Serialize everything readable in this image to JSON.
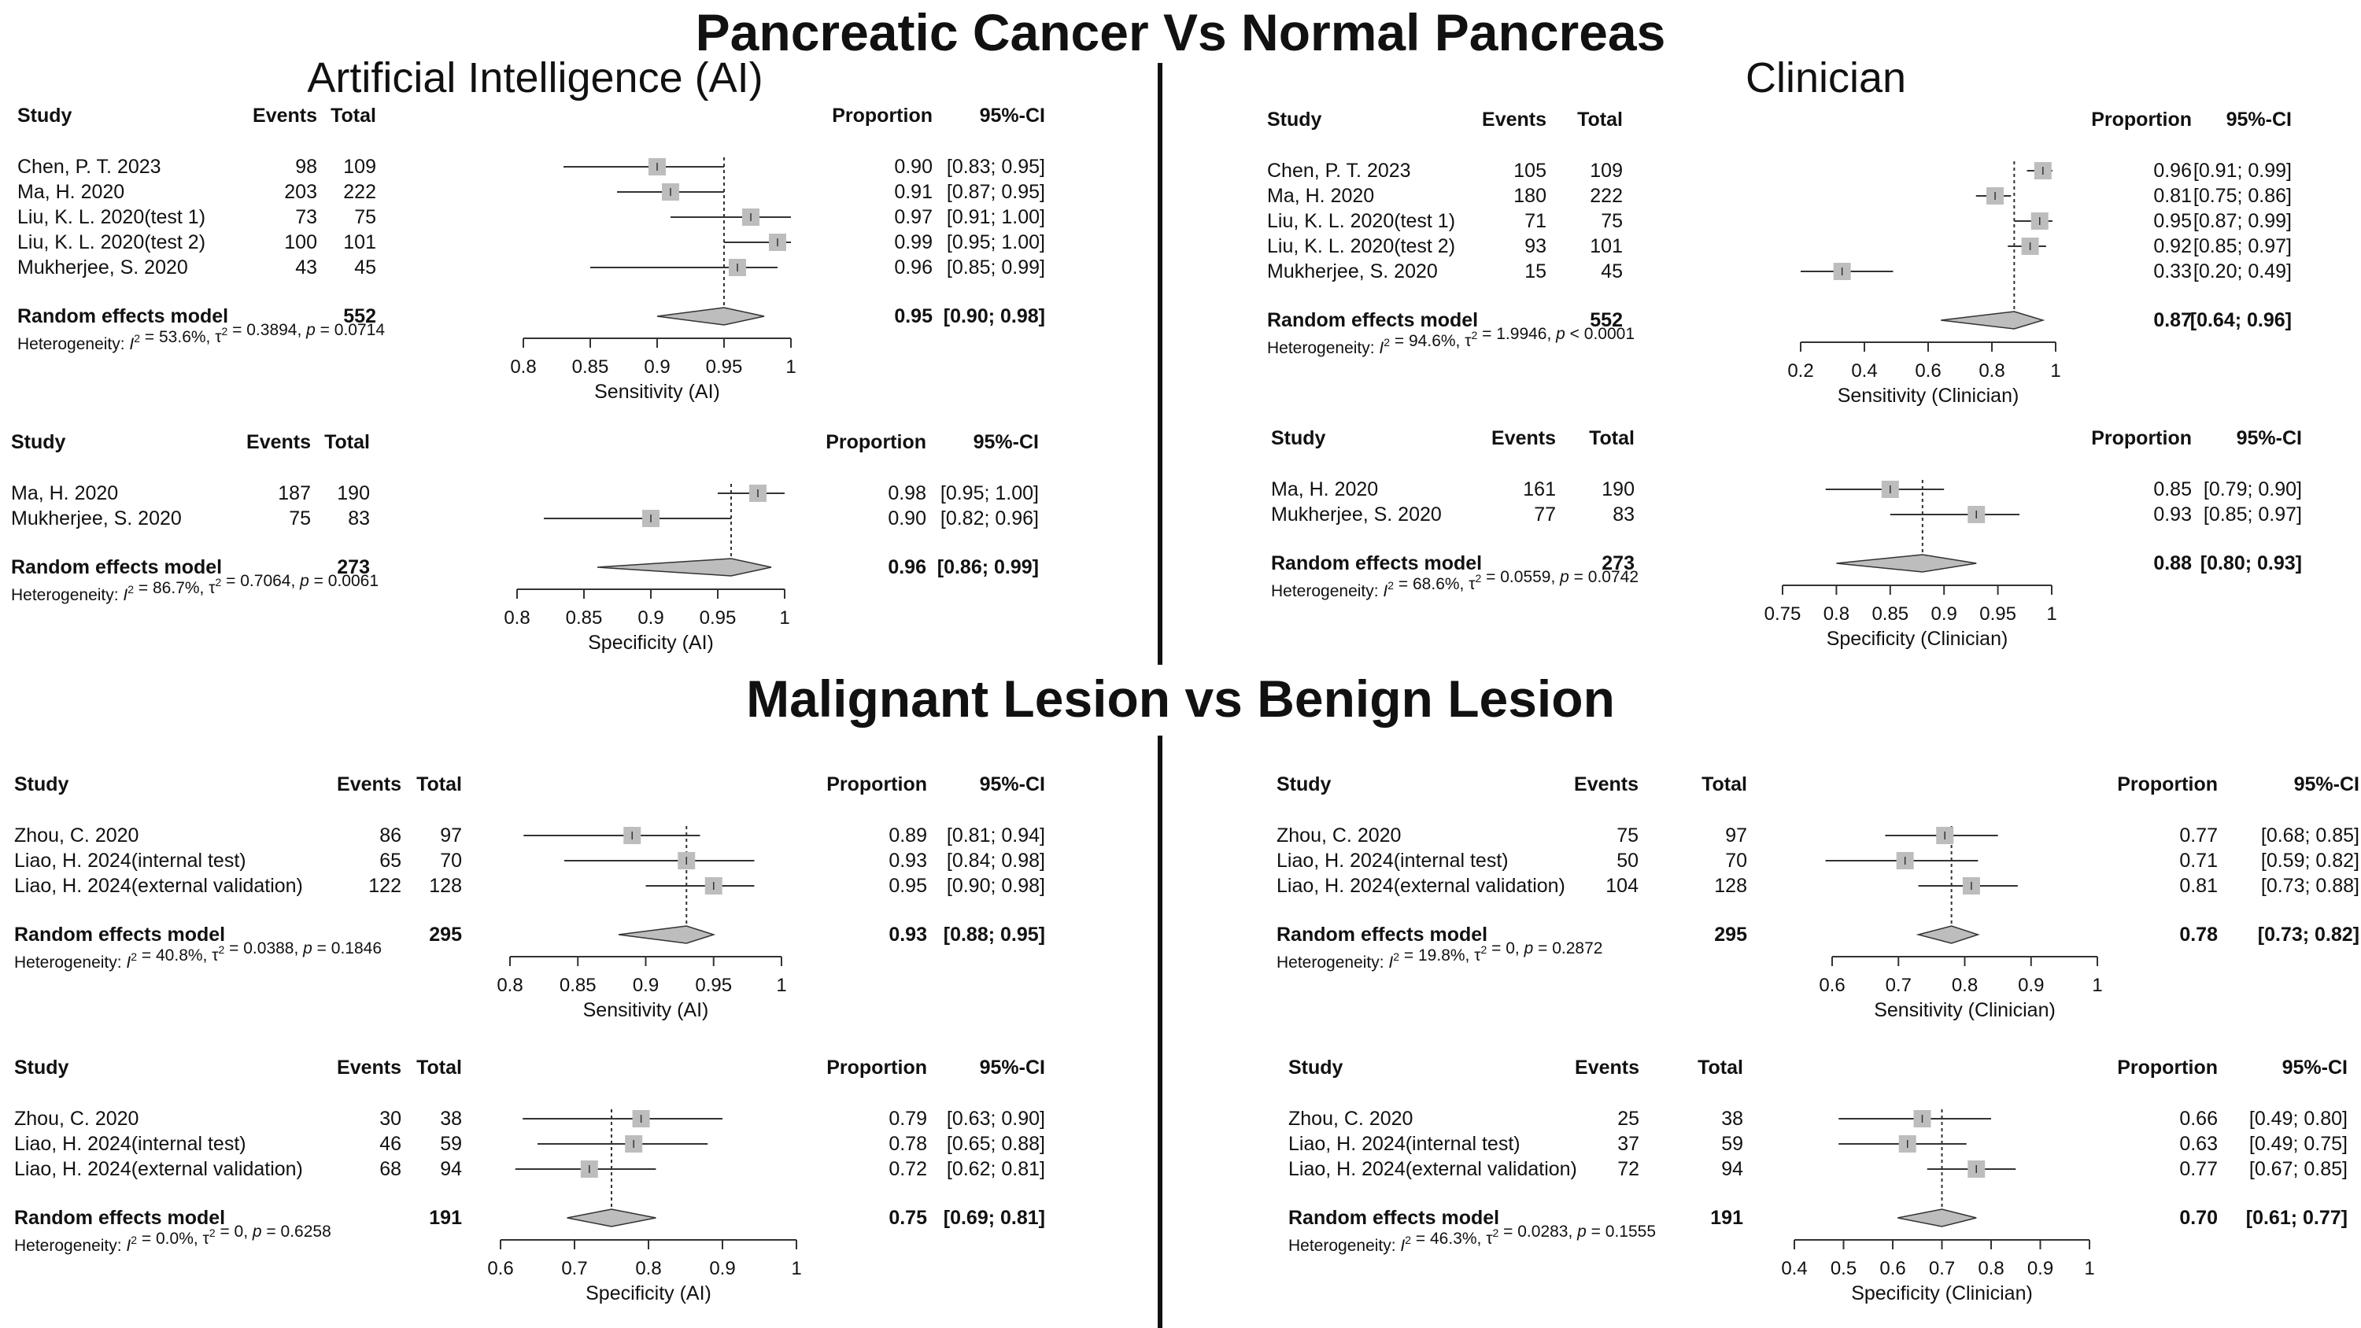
{
  "titles": {
    "top": "Pancreatic Cancer Vs Normal Pancreas",
    "bottom": "Malignant Lesion vs Benign Lesion",
    "ai": "Artificial Intelligence (AI)",
    "clinician": "Clinician"
  },
  "headers": {
    "study": "Study",
    "events": "Events",
    "total": "Total",
    "proportion": "Proportion",
    "ci": "95%-CI"
  },
  "colors": {
    "box": "#bdbdbd",
    "diamond": "#bdbdbd",
    "line": "#333333",
    "divider": "#111111"
  },
  "chart_data": [
    {
      "id": "pc-ai-sens",
      "type": "forest",
      "xlabel": "Sensitivity (AI)",
      "xlim": [
        0.8,
        1.0
      ],
      "xticks": [
        0.8,
        0.85,
        0.9,
        0.95,
        1
      ],
      "tick_labels": [
        "0.8",
        "0.85",
        "0.9",
        "0.95",
        "1"
      ],
      "studies": [
        {
          "label": "Chen, P. T. 2023",
          "events": "98",
          "total": "109",
          "est": 0.9,
          "lo": 0.83,
          "hi": 0.95,
          "prop_text": "0.90",
          "ci_text": "[0.83; 0.95]"
        },
        {
          "label": "Ma, H. 2020",
          "events": "203",
          "total": "222",
          "est": 0.91,
          "lo": 0.87,
          "hi": 0.95,
          "prop_text": "0.91",
          "ci_text": "[0.87; 0.95]"
        },
        {
          "label": "Liu, K. L. 2020(test 1)",
          "events": "73",
          "total": "75",
          "est": 0.97,
          "lo": 0.91,
          "hi": 1.0,
          "prop_text": "0.97",
          "ci_text": "[0.91; 1.00]"
        },
        {
          "label": "Liu, K. L. 2020(test 2)",
          "events": "100",
          "total": "101",
          "est": 0.99,
          "lo": 0.95,
          "hi": 1.0,
          "prop_text": "0.99",
          "ci_text": "[0.95; 1.00]"
        },
        {
          "label": "Mukherjee, S. 2020",
          "events": "43",
          "total": "45",
          "est": 0.96,
          "lo": 0.85,
          "hi": 0.99,
          "prop_text": "0.96",
          "ci_text": "[0.85; 0.99]"
        }
      ],
      "pooled": {
        "label": "Random effects model",
        "total": "552",
        "est": 0.95,
        "lo": 0.9,
        "hi": 0.98,
        "prop_text": "0.95",
        "ci_text": "[0.90; 0.98]"
      },
      "het": {
        "prefix": "Heterogeneity: ",
        "i2": "I",
        "i2_val": " = 53.6%, τ",
        "t2_val": " = 0.3894, ",
        "p": "p",
        "p_val": " = 0.0714"
      }
    },
    {
      "id": "pc-ai-spec",
      "type": "forest",
      "xlabel": "Specificity (AI)",
      "xlim": [
        0.8,
        1.0
      ],
      "xticks": [
        0.8,
        0.85,
        0.9,
        0.95,
        1
      ],
      "tick_labels": [
        "0.8",
        "0.85",
        "0.9",
        "0.95",
        "1"
      ],
      "studies": [
        {
          "label": "Ma, H. 2020",
          "events": "187",
          "total": "190",
          "est": 0.98,
          "lo": 0.95,
          "hi": 1.0,
          "prop_text": "0.98",
          "ci_text": "[0.95; 1.00]"
        },
        {
          "label": "Mukherjee, S. 2020",
          "events": "75",
          "total": "83",
          "est": 0.9,
          "lo": 0.82,
          "hi": 0.96,
          "prop_text": "0.90",
          "ci_text": "[0.82; 0.96]"
        }
      ],
      "pooled": {
        "label": "Random effects model",
        "total": "273",
        "est": 0.96,
        "lo": 0.86,
        "hi": 0.99,
        "prop_text": "0.96",
        "ci_text": "[0.86; 0.99]"
      },
      "het": {
        "prefix": "Heterogeneity: ",
        "i2": "I",
        "i2_val": " = 86.7%, τ",
        "t2_val": " = 0.7064, ",
        "p": "p",
        "p_val": " = 0.0061"
      }
    },
    {
      "id": "pc-cl-sens",
      "type": "forest",
      "xlabel": "Sensitivity (Clinician)",
      "xlim": [
        0.2,
        1.0
      ],
      "xticks": [
        0.2,
        0.4,
        0.6,
        0.8,
        1
      ],
      "tick_labels": [
        "0.2",
        "0.4",
        "0.6",
        "0.8",
        "1"
      ],
      "studies": [
        {
          "label": "Chen, P. T. 2023",
          "events": "105",
          "total": "109",
          "est": 0.96,
          "lo": 0.91,
          "hi": 0.99,
          "prop_text": "0.96",
          "ci_text": "[0.91; 0.99]"
        },
        {
          "label": "Ma, H. 2020",
          "events": "180",
          "total": "222",
          "est": 0.81,
          "lo": 0.75,
          "hi": 0.86,
          "prop_text": "0.81",
          "ci_text": "[0.75; 0.86]"
        },
        {
          "label": "Liu, K. L. 2020(test 1)",
          "events": "71",
          "total": "75",
          "est": 0.95,
          "lo": 0.87,
          "hi": 0.99,
          "prop_text": "0.95",
          "ci_text": "[0.87; 0.99]"
        },
        {
          "label": "Liu, K. L. 2020(test 2)",
          "events": "93",
          "total": "101",
          "est": 0.92,
          "lo": 0.85,
          "hi": 0.97,
          "prop_text": "0.92",
          "ci_text": "[0.85; 0.97]"
        },
        {
          "label": "Mukherjee, S. 2020",
          "events": "15",
          "total": "45",
          "est": 0.33,
          "lo": 0.2,
          "hi": 0.49,
          "prop_text": "0.33",
          "ci_text": "[0.20; 0.49]"
        }
      ],
      "pooled": {
        "label": "Random effects model",
        "total": "552",
        "est": 0.87,
        "lo": 0.64,
        "hi": 0.96,
        "prop_text": "0.87",
        "ci_text": "[0.64; 0.96]"
      },
      "het": {
        "prefix": "Heterogeneity: ",
        "i2": "I",
        "i2_val": " = 94.6%, τ",
        "t2_val": " = 1.9946, ",
        "p": "p",
        "p_val": " < 0.0001"
      }
    },
    {
      "id": "pc-cl-spec",
      "type": "forest",
      "xlabel": "Specificity (Clinician)",
      "xlim": [
        0.75,
        1.0
      ],
      "xticks": [
        0.75,
        0.8,
        0.85,
        0.9,
        0.95,
        1
      ],
      "tick_labels": [
        "0.75",
        "0.8",
        "0.85",
        "0.9",
        "0.95",
        "1"
      ],
      "studies": [
        {
          "label": "Ma, H. 2020",
          "events": "161",
          "total": "190",
          "est": 0.85,
          "lo": 0.79,
          "hi": 0.9,
          "prop_text": "0.85",
          "ci_text": "[0.79; 0.90]"
        },
        {
          "label": "Mukherjee, S. 2020",
          "events": "77",
          "total": "83",
          "est": 0.93,
          "lo": 0.85,
          "hi": 0.97,
          "prop_text": "0.93",
          "ci_text": "[0.85; 0.97]"
        }
      ],
      "pooled": {
        "label": "Random effects model",
        "total": "273",
        "est": 0.88,
        "lo": 0.8,
        "hi": 0.93,
        "prop_text": "0.88",
        "ci_text": "[0.80; 0.93]"
      },
      "het": {
        "prefix": "Heterogeneity: ",
        "i2": "I",
        "i2_val": " = 68.6%, τ",
        "t2_val": " = 0.0559, ",
        "p": "p",
        "p_val": " = 0.0742"
      }
    },
    {
      "id": "ml-ai-sens",
      "type": "forest",
      "xlabel": "Sensitivity (AI)",
      "xlim": [
        0.8,
        1.0
      ],
      "xticks": [
        0.8,
        0.85,
        0.9,
        0.95,
        1
      ],
      "tick_labels": [
        "0.8",
        "0.85",
        "0.9",
        "0.95",
        "1"
      ],
      "studies": [
        {
          "label": "Zhou, C. 2020",
          "events": "86",
          "total": "97",
          "est": 0.89,
          "lo": 0.81,
          "hi": 0.94,
          "prop_text": "0.89",
          "ci_text": "[0.81; 0.94]"
        },
        {
          "label": "Liao, H. 2024(internal test)",
          "events": "65",
          "total": "70",
          "est": 0.93,
          "lo": 0.84,
          "hi": 0.98,
          "prop_text": "0.93",
          "ci_text": "[0.84; 0.98]"
        },
        {
          "label": "Liao, H. 2024(external validation)",
          "events": "122",
          "total": "128",
          "est": 0.95,
          "lo": 0.9,
          "hi": 0.98,
          "prop_text": "0.95",
          "ci_text": "[0.90; 0.98]"
        }
      ],
      "pooled": {
        "label": "Random effects model",
        "total": "295",
        "est": 0.93,
        "lo": 0.88,
        "hi": 0.95,
        "prop_text": "0.93",
        "ci_text": "[0.88; 0.95]"
      },
      "het": {
        "prefix": "Heterogeneity: ",
        "i2": "I",
        "i2_val": " = 40.8%, τ",
        "t2_val": " = 0.0388, ",
        "p": "p",
        "p_val": " = 0.1846"
      }
    },
    {
      "id": "ml-ai-spec",
      "type": "forest",
      "xlabel": "Specificity (AI)",
      "xlim": [
        0.6,
        1.0
      ],
      "xticks": [
        0.6,
        0.7,
        0.8,
        0.9,
        1
      ],
      "tick_labels": [
        "0.6",
        "0.7",
        "0.8",
        "0.9",
        "1"
      ],
      "studies": [
        {
          "label": "Zhou, C. 2020",
          "events": "30",
          "total": "38",
          "est": 0.79,
          "lo": 0.63,
          "hi": 0.9,
          "prop_text": "0.79",
          "ci_text": "[0.63; 0.90]"
        },
        {
          "label": "Liao, H. 2024(internal test)",
          "events": "46",
          "total": "59",
          "est": 0.78,
          "lo": 0.65,
          "hi": 0.88,
          "prop_text": "0.78",
          "ci_text": "[0.65; 0.88]"
        },
        {
          "label": "Liao, H. 2024(external validation)",
          "events": "68",
          "total": "94",
          "est": 0.72,
          "lo": 0.62,
          "hi": 0.81,
          "prop_text": "0.72",
          "ci_text": "[0.62; 0.81]"
        }
      ],
      "pooled": {
        "label": "Random effects model",
        "total": "191",
        "est": 0.75,
        "lo": 0.69,
        "hi": 0.81,
        "prop_text": "0.75",
        "ci_text": "[0.69; 0.81]"
      },
      "het": {
        "prefix": "Heterogeneity: ",
        "i2": "I",
        "i2_val": " = 0.0%, τ",
        "t2_val": " = 0, ",
        "p": "p",
        "p_val": " = 0.6258"
      }
    },
    {
      "id": "ml-cl-sens",
      "type": "forest",
      "xlabel": "Sensitivity (Clinician)",
      "xlim": [
        0.6,
        1.0
      ],
      "xticks": [
        0.6,
        0.7,
        0.8,
        0.9,
        1
      ],
      "tick_labels": [
        "0.6",
        "0.7",
        "0.8",
        "0.9",
        "1"
      ],
      "studies": [
        {
          "label": "Zhou, C. 2020",
          "events": "75",
          "total": "97",
          "est": 0.77,
          "lo": 0.68,
          "hi": 0.85,
          "prop_text": "0.77",
          "ci_text": "[0.68; 0.85]"
        },
        {
          "label": "Liao, H. 2024(internal test)",
          "events": "50",
          "total": "70",
          "est": 0.71,
          "lo": 0.59,
          "hi": 0.82,
          "prop_text": "0.71",
          "ci_text": "[0.59; 0.82]"
        },
        {
          "label": "Liao, H. 2024(external validation)",
          "events": "104",
          "total": "128",
          "est": 0.81,
          "lo": 0.73,
          "hi": 0.88,
          "prop_text": "0.81",
          "ci_text": "[0.73; 0.88]"
        }
      ],
      "pooled": {
        "label": "Random effects model",
        "total": "295",
        "est": 0.78,
        "lo": 0.73,
        "hi": 0.82,
        "prop_text": "0.78",
        "ci_text": "[0.73; 0.82]"
      },
      "het": {
        "prefix": "Heterogeneity: ",
        "i2": "I",
        "i2_val": " = 19.8%, τ",
        "t2_val": " = 0, ",
        "p": "p",
        "p_val": " = 0.2872"
      }
    },
    {
      "id": "ml-cl-spec",
      "type": "forest",
      "xlabel": "Specificity (Clinician)",
      "xlim": [
        0.4,
        1.0
      ],
      "xticks": [
        0.4,
        0.5,
        0.6,
        0.7,
        0.8,
        0.9,
        1
      ],
      "tick_labels": [
        "0.4",
        "0.5",
        "0.6",
        "0.7",
        "0.8",
        "0.9",
        "1"
      ],
      "studies": [
        {
          "label": "Zhou, C. 2020",
          "events": "25",
          "total": "38",
          "est": 0.66,
          "lo": 0.49,
          "hi": 0.8,
          "prop_text": "0.66",
          "ci_text": "[0.49; 0.80]"
        },
        {
          "label": "Liao, H. 2024(internal test)",
          "events": "37",
          "total": "59",
          "est": 0.63,
          "lo": 0.49,
          "hi": 0.75,
          "prop_text": "0.63",
          "ci_text": "[0.49; 0.75]"
        },
        {
          "label": "Liao, H. 2024(external validation)",
          "events": "72",
          "total": "94",
          "est": 0.77,
          "lo": 0.67,
          "hi": 0.85,
          "prop_text": "0.77",
          "ci_text": "[0.67; 0.85]"
        }
      ],
      "pooled": {
        "label": "Random effects model",
        "total": "191",
        "est": 0.7,
        "lo": 0.61,
        "hi": 0.77,
        "prop_text": "0.70",
        "ci_text": "[0.61; 0.77]"
      },
      "het": {
        "prefix": "Heterogeneity: ",
        "i2": "I",
        "i2_val": " = 46.3%, τ",
        "t2_val": " = 0.0283, ",
        "p": "p",
        "p_val": " = 0.1555"
      }
    }
  ]
}
